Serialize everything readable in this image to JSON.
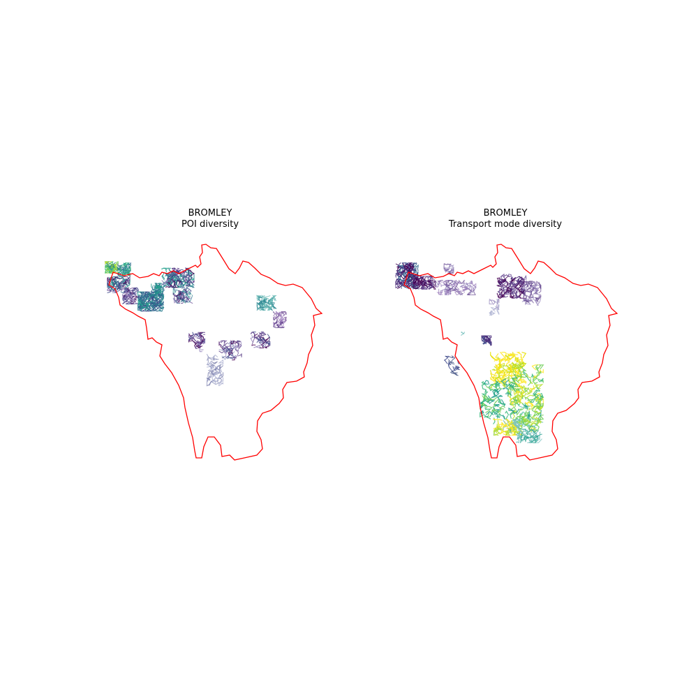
{
  "panels": [
    {
      "title": "BROMLEY",
      "subtitle": "POI diversity",
      "boundary_color": "#ff0000",
      "colormap": "viridis"
    },
    {
      "title": "BROMLEY",
      "subtitle": "Transport mode diversity",
      "boundary_color": "#ff0000",
      "colormap": "viridis"
    }
  ]
}
